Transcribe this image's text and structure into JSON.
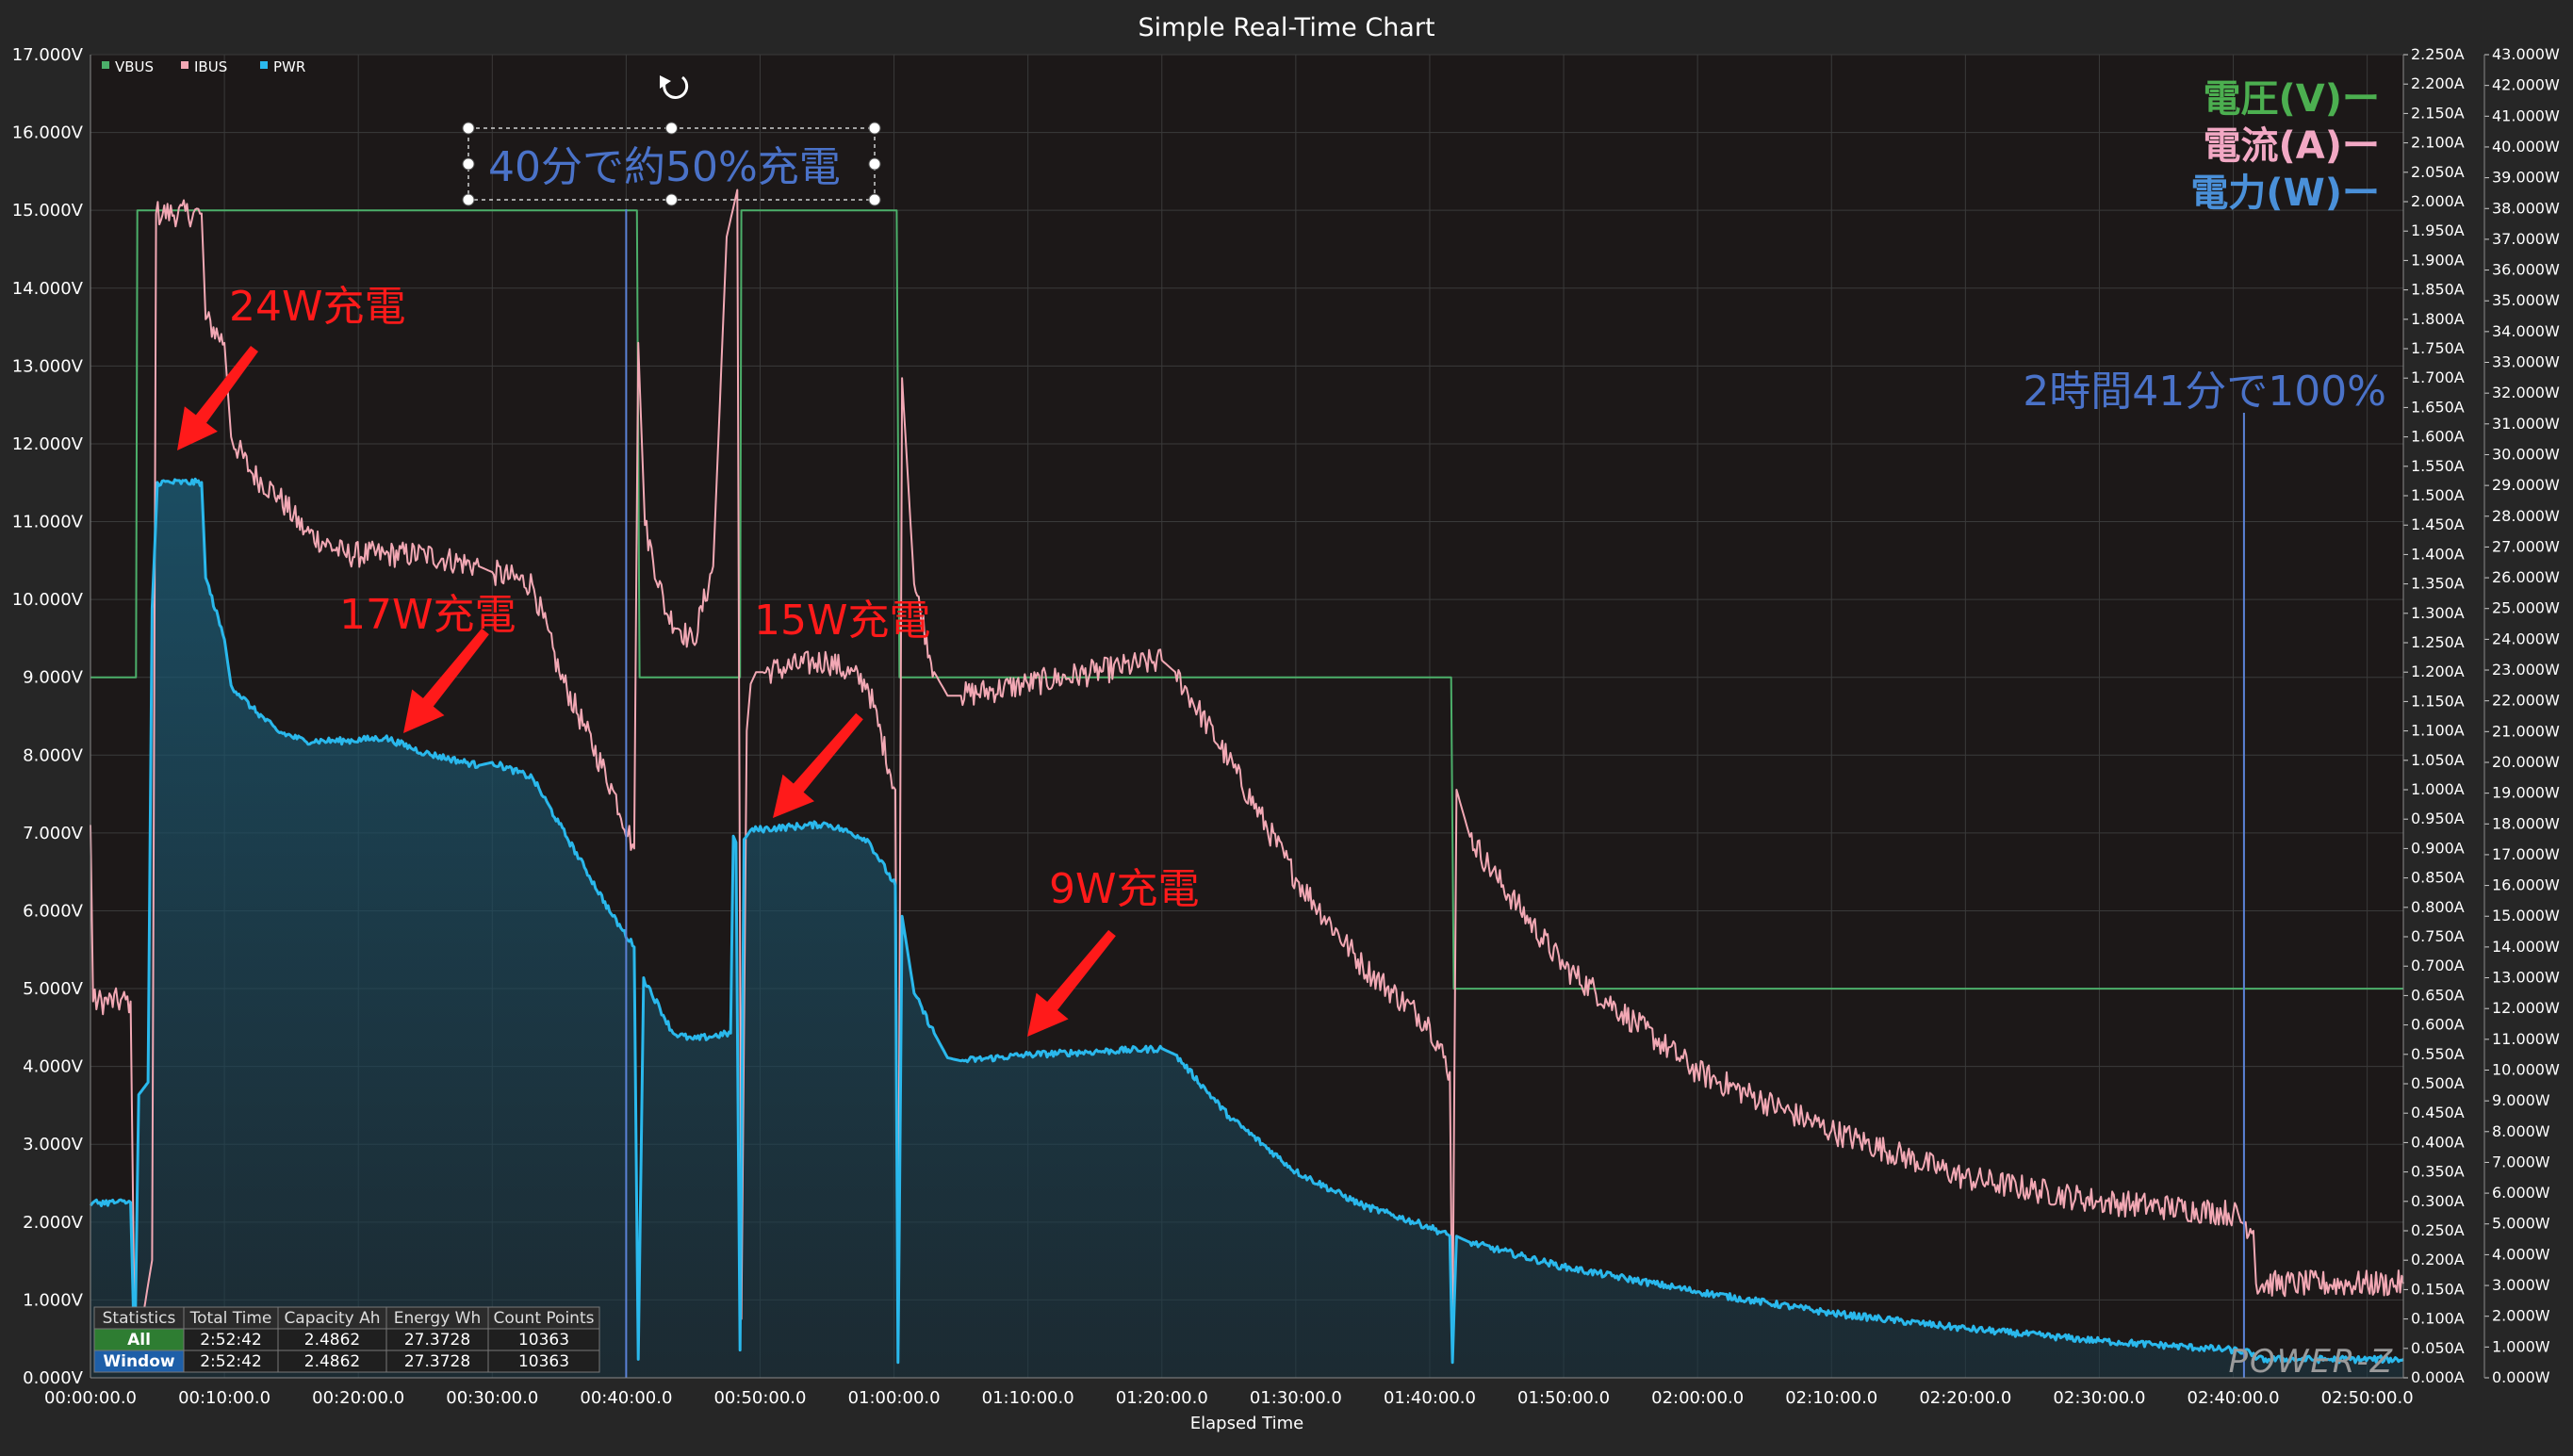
{
  "chart_data": {
    "type": "line",
    "title": "Simple Real-Time Chart",
    "xlabel": "Elapsed Time",
    "x_ticks": [
      "00:00:00.0",
      "00:10:00.0",
      "00:20:00.0",
      "00:30:00.0",
      "00:40:00.0",
      "00:50:00.0",
      "01:00:00.0",
      "01:10:00.0",
      "01:20:00.0",
      "01:30:00.0",
      "01:40:00.0",
      "01:50:00.0",
      "02:00:00.0",
      "02:10:00.0",
      "02:20:00.0",
      "02:30:00.0",
      "02:40:00.0",
      "02:50:00.0"
    ],
    "xlim_minutes": [
      0,
      172.7
    ],
    "y_left": {
      "unit": "V",
      "range": [
        0,
        17
      ],
      "step": 1,
      "decimals": 3
    },
    "y_right1": {
      "unit": "A",
      "range": [
        0,
        2.25
      ],
      "step": 0.05,
      "decimals": 3
    },
    "y_right2": {
      "unit": "W",
      "range": [
        0,
        43
      ],
      "step": 1,
      "decimals": 3
    },
    "grid": true,
    "legend_position": "top-left",
    "series": [
      {
        "name": "VBUS",
        "axis": "left",
        "color": "#4caf6a",
        "x": [
          0,
          3.4,
          3.5,
          40.8,
          41.0,
          48.5,
          48.6,
          60.2,
          60.4,
          101.6,
          101.8,
          172.7
        ],
        "y": [
          9.0,
          9.0,
          15.0,
          15.0,
          9.0,
          9.0,
          15.0,
          15.0,
          9.0,
          9.0,
          5.0,
          5.0
        ]
      },
      {
        "name": "IBUS",
        "axis": "right1",
        "color": "#f2a8b4",
        "x": [
          0,
          0.2,
          3.0,
          3.3,
          3.6,
          4.6,
          4.9,
          8.3,
          8.6,
          10,
          10.5,
          12,
          14,
          16,
          19,
          22,
          25,
          29,
          30,
          33,
          35,
          37,
          39,
          40.6,
          40.9,
          41.4,
          43,
          45,
          46.5,
          47.5,
          48.3,
          48.6,
          49,
          49.3,
          49.7,
          50.2,
          55,
          58,
          60.1,
          60.3,
          60.6,
          61.5,
          63,
          64,
          65,
          70,
          75,
          80,
          81,
          85,
          90,
          95,
          100,
          101.5,
          101.7,
          102,
          103,
          105,
          110,
          120,
          130,
          140,
          150,
          160,
          161.5,
          161.7,
          172.7
        ],
        "y": [
          0.94,
          0.64,
          0.64,
          0.05,
          0.06,
          0.2,
          1.98,
          1.98,
          1.8,
          1.76,
          1.6,
          1.54,
          1.5,
          1.44,
          1.4,
          1.4,
          1.4,
          1.38,
          1.37,
          1.35,
          1.2,
          1.1,
          1.0,
          0.9,
          1.76,
          1.45,
          1.3,
          1.25,
          1.38,
          1.94,
          2.02,
          0.1,
          1.1,
          1.18,
          1.2,
          1.2,
          1.22,
          1.18,
          1.0,
          0.05,
          1.7,
          1.35,
          1.2,
          1.16,
          1.16,
          1.18,
          1.2,
          1.22,
          1.2,
          1.05,
          0.85,
          0.7,
          0.6,
          0.52,
          0.05,
          1.0,
          0.92,
          0.85,
          0.7,
          0.52,
          0.42,
          0.34,
          0.3,
          0.28,
          0.25,
          0.16,
          0.16
        ]
      },
      {
        "name": "PWR",
        "axis": "right2",
        "color": "#2ab8ec",
        "x": [
          0,
          0.2,
          3.0,
          3.3,
          3.6,
          4.3,
          4.6,
          5.0,
          8.3,
          8.6,
          10,
          10.5,
          12,
          14,
          16,
          19,
          22,
          25,
          29,
          30,
          33,
          35,
          37,
          39,
          40.6,
          40.9,
          41.3,
          43.5,
          45,
          47.8,
          48.0,
          48.2,
          48.5,
          48.8,
          49.0,
          49.3,
          55,
          58,
          60.1,
          60.3,
          60.6,
          61.5,
          63,
          64,
          65,
          70,
          75,
          80,
          81,
          85,
          90,
          95,
          100,
          101.5,
          101.7,
          102,
          103,
          110,
          120,
          130,
          140,
          150,
          160,
          161.5,
          161.7,
          172.7
        ],
        "y": [
          5.6,
          5.7,
          5.7,
          0.4,
          9.2,
          9.6,
          25.0,
          29.1,
          29.1,
          26.0,
          24.0,
          22.5,
          21.8,
          21.0,
          20.7,
          20.7,
          20.8,
          20.3,
          19.9,
          20.0,
          19.5,
          18.0,
          16.5,
          15.0,
          14.0,
          0.6,
          13.0,
          11.2,
          11.0,
          11.2,
          17.6,
          17.4,
          0.9,
          17.5,
          17.6,
          17.8,
          18.0,
          17.5,
          16.0,
          0.5,
          15.0,
          12.5,
          11.2,
          10.4,
          10.3,
          10.5,
          10.6,
          10.7,
          10.5,
          8.5,
          6.7,
          5.6,
          4.9,
          4.6,
          0.5,
          4.6,
          4.4,
          3.6,
          2.8,
          2.1,
          1.6,
          1.2,
          0.9,
          0.8,
          0.6,
          0.6
        ]
      }
    ],
    "annotations": [
      {
        "text": "24W充電",
        "color": "#ff1a1a",
        "kind": "red"
      },
      {
        "text": "17W充電",
        "color": "#ff1a1a",
        "kind": "red"
      },
      {
        "text": "15W充電",
        "color": "#ff1a1a",
        "kind": "red"
      },
      {
        "text": "9W充電",
        "color": "#ff1a1a",
        "kind": "red"
      },
      {
        "text": "40分で約50%充電",
        "color": "#4a72c8",
        "kind": "blue"
      },
      {
        "text": "2時間41分で100%",
        "color": "#4a72c8",
        "kind": "blue"
      }
    ],
    "big_legend": [
      {
        "text": "電圧(V)ー",
        "color": "#4caf50"
      },
      {
        "text": "電流(A)ー",
        "color": "#f2a8c4"
      },
      {
        "text": "電力(W)ー",
        "color": "#4a90d9"
      }
    ],
    "markers_minutes": [
      40.0,
      160.8
    ]
  },
  "statistics": {
    "headers": [
      "Statistics",
      "Total Time",
      "Capacity Ah",
      "Energy Wh",
      "Count Points"
    ],
    "rows": [
      {
        "label": "All",
        "values": [
          "2:52:42",
          "2.4862",
          "27.3728",
          "10363"
        ],
        "color": "#2e7d32"
      },
      {
        "label": "Window",
        "values": [
          "2:52:42",
          "2.4862",
          "27.3728",
          "10363"
        ],
        "color": "#1e5fa8"
      }
    ]
  },
  "logo": "POWER-Z"
}
